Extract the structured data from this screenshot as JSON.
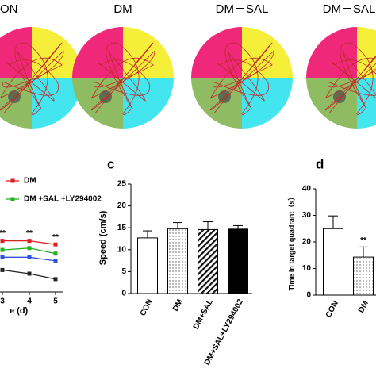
{
  "swim_paths": {
    "labels": [
      "ON",
      "DM",
      "DM＋SAL",
      "DM＋SAL"
    ]
  },
  "chart_data": [
    {
      "type": "line",
      "x_label": "e (d)",
      "categories": [
        "3",
        "4",
        "5"
      ],
      "ylim": [
        0,
        60
      ],
      "series": [
        {
          "name": "DM",
          "color": "#e02020",
          "values": [
            28,
            28,
            26
          ]
        },
        {
          "name": "DM +SAL +LY294002",
          "color": "#20b020",
          "values": [
            23,
            24,
            21
          ]
        },
        {
          "color": "#3050e0",
          "values": [
            19,
            19,
            17
          ]
        },
        {
          "color": "#222222",
          "values": [
            12,
            10,
            7
          ]
        }
      ],
      "annotations": [
        "**",
        "**",
        "**"
      ]
    },
    {
      "type": "bar",
      "panel_label": "c",
      "y_label": "Speed (cm/s)",
      "categories": [
        "CON",
        "DM",
        "DM+SAL",
        "DM+SAL+LY294002"
      ],
      "values": [
        12.7,
        14.8,
        14.6,
        14.7
      ],
      "errors": [
        1.6,
        1.4,
        1.8,
        0.8
      ],
      "styles": [
        "white",
        "dots",
        "hatch",
        "black"
      ],
      "ylim": [
        0,
        25
      ],
      "yticks": [
        0,
        5,
        10,
        15,
        20,
        25
      ]
    },
    {
      "type": "bar",
      "panel_label": "d",
      "y_label": "Time in target quadrant（s）",
      "categories": [
        "CON",
        "DM"
      ],
      "values": [
        25,
        14.3
      ],
      "errors": [
        4.8,
        3.8
      ],
      "styles": [
        "white",
        "dots"
      ],
      "annotations": [
        "",
        "**"
      ],
      "ylim": [
        0,
        40
      ],
      "yticks": [
        0,
        10,
        20,
        30,
        40
      ]
    }
  ]
}
